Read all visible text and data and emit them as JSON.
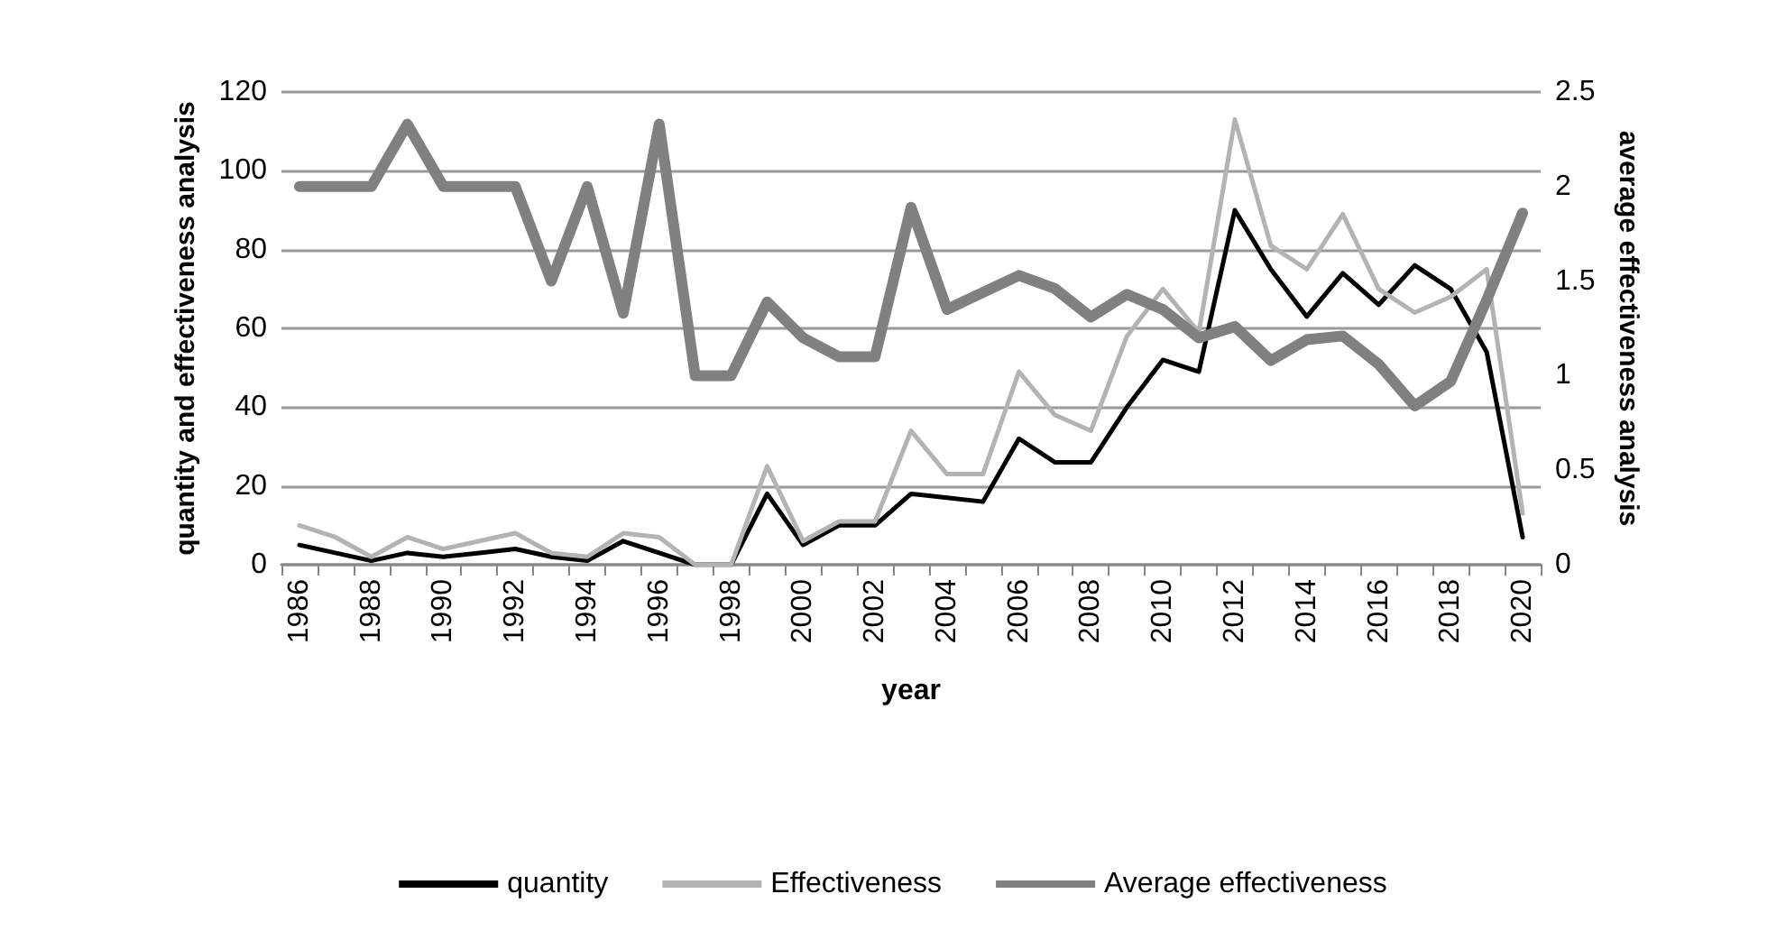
{
  "chart_data": {
    "type": "line",
    "xlabel": "year",
    "ylabel": "quantity and effectiveness analysis",
    "y2label": "average effectiveness analysis",
    "categories": [
      "1986",
      null,
      "1988",
      null,
      "1990",
      null,
      "1992",
      null,
      "1994",
      null,
      "1996",
      null,
      "1998",
      null,
      "2000",
      null,
      "2002",
      null,
      "2004",
      null,
      "2006",
      null,
      "2008",
      null,
      "2010",
      null,
      "2012",
      null,
      "2014",
      null,
      "2016",
      null,
      "2018",
      null,
      "2020"
    ],
    "series": [
      {
        "name": "quantity",
        "color": "#000000",
        "values": [
          5,
          3,
          1,
          3,
          2,
          3,
          4,
          2,
          1,
          6,
          3,
          0,
          0,
          18,
          5,
          10,
          10,
          18,
          17,
          16,
          32,
          26,
          26,
          40,
          52,
          49,
          90,
          75,
          63,
          74,
          66,
          76,
          70,
          54,
          7
        ]
      },
      {
        "name": "Effectiveness",
        "color": "#b3b3b3",
        "values": [
          10,
          7,
          2,
          7,
          4,
          6,
          8,
          3,
          2,
          8,
          7,
          0,
          0,
          25,
          6,
          11,
          11,
          34,
          23,
          23,
          49,
          38,
          34,
          58,
          70,
          59,
          113,
          81,
          75,
          89,
          70,
          64,
          68,
          75,
          13
        ]
      },
      {
        "name": "Average effectiveness",
        "color": "#808080",
        "axis": "y2",
        "values": [
          2,
          2,
          2,
          2.33,
          2,
          2,
          2,
          1.5,
          2,
          1.33,
          2.33,
          1,
          1,
          1.39,
          1.2,
          1.1,
          1.1,
          1.89,
          1.35,
          1.44,
          1.53,
          1.46,
          1.31,
          1.43,
          1.35,
          1.2,
          1.26,
          1.08,
          1.19,
          1.21,
          1.06,
          0.84,
          0.97,
          1.4,
          1.86
        ]
      }
    ],
    "ylim": [
      0,
      120
    ],
    "yticks": [
      0,
      20,
      40,
      60,
      80,
      100,
      120
    ],
    "y2lim": [
      0,
      2.5
    ],
    "y2ticks": [
      0,
      0.5,
      1,
      1.5,
      2,
      2.5
    ],
    "grid": "y",
    "legend": "bottom",
    "marker": "none",
    "line_style": "solid"
  }
}
